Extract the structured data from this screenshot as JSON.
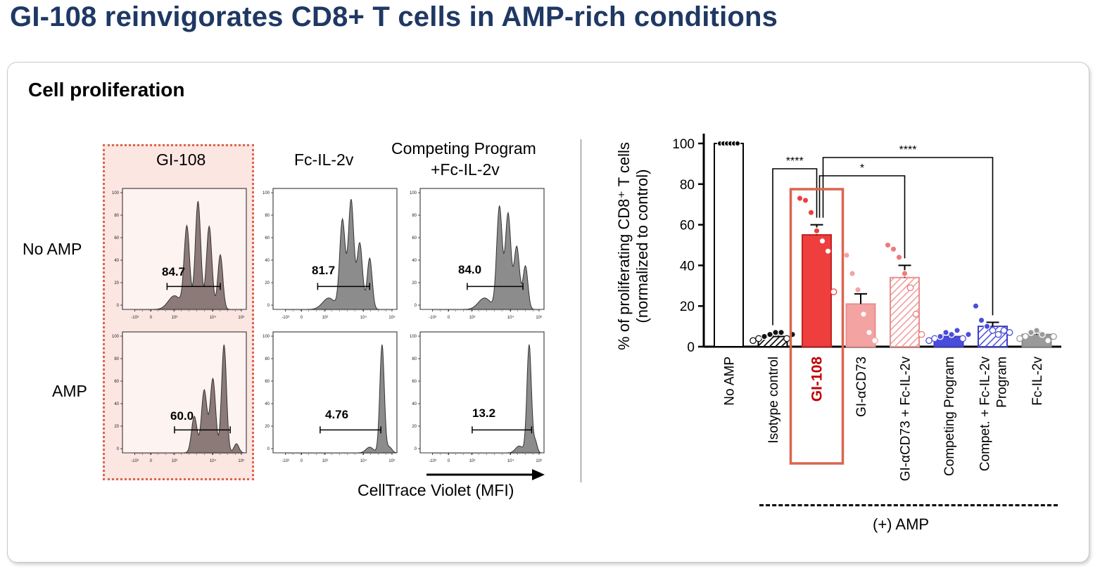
{
  "title": "GI-108 reinvigorates CD8+ T cells in AMP-rich conditions",
  "panel_title": "Cell proliferation",
  "flow": {
    "columns": [
      "GI-108",
      "Fc-IL-2v",
      "Competing Program",
      "+Fc-IL-2v"
    ],
    "rows": [
      "No AMP",
      "AMP"
    ],
    "percentages": [
      [
        "84.7",
        "81.7",
        "84.0"
      ],
      [
        "60.0",
        "4.76",
        "13.2"
      ]
    ],
    "x_axis_label": "CellTrace Violet (MFI)",
    "y_ticks": [
      "100",
      "80",
      "60",
      "40",
      "20",
      "0"
    ],
    "x_ticks": [
      "-10³",
      "0",
      "10³",
      "10⁴",
      "10⁵"
    ]
  },
  "chart_data": {
    "type": "bar",
    "ylabel": "% of proliferating CD8⁺ T cells",
    "ylabel2": "(normalized to control)",
    "ylim": [
      0,
      100
    ],
    "yticks": [
      0,
      20,
      40,
      60,
      80,
      100
    ],
    "categories": [
      "No AMP",
      "Isotype control",
      "GI-108",
      "GI-αCD73",
      "GI-αCD73 + Fc-IL-2v",
      "Competing Program",
      "Compet. + Fc-IL-2v Program",
      "Fc-IL-2v"
    ],
    "category_lines": [
      [
        "No AMP"
      ],
      [
        "Isotype control"
      ],
      [
        "GI-108"
      ],
      [
        "GI-αCD73"
      ],
      [
        "GI-αCD73 + Fc-IL-2v"
      ],
      [
        "Competing Program"
      ],
      [
        "Compet.  + Fc-IL-2v",
        "Program"
      ],
      [
        "Fc-IL-2v"
      ]
    ],
    "values": [
      100,
      5,
      55,
      21,
      34,
      5,
      10,
      6
    ],
    "sem": [
      0,
      1,
      5,
      5,
      6,
      1,
      2,
      1
    ],
    "points": [
      [
        100,
        100,
        100,
        100,
        100,
        100
      ],
      [
        3,
        4,
        5,
        6,
        7,
        7,
        4,
        6
      ],
      [
        73,
        72,
        66,
        57,
        52,
        47,
        27
      ],
      [
        45,
        36,
        28,
        16,
        7,
        3
      ],
      [
        50,
        48,
        44,
        36,
        29,
        16,
        6
      ],
      [
        3,
        4,
        5,
        7,
        6,
        8,
        4,
        6
      ],
      [
        20,
        13,
        10,
        8,
        6,
        8,
        7
      ],
      [
        4,
        5,
        7,
        8,
        6,
        3,
        5
      ]
    ],
    "colors": [
      "#ffffff",
      "#111111",
      "#ee3e3e",
      "#f4a3a3",
      "#f5b3b3",
      "#4a4ddb",
      "#4a4ddb",
      "#9a9a9a"
    ],
    "fills": [
      "plain",
      "hatch-dark",
      "solid",
      "solid",
      "hatch-pink",
      "solid",
      "hatch-blue",
      "solid"
    ],
    "highlight_category": "GI-108",
    "significance": [
      {
        "from": "Isotype control",
        "to": "GI-108",
        "label": "****"
      },
      {
        "from": "GI-108",
        "to": "GI-αCD73 + Fc-IL-2v",
        "label": "*"
      },
      {
        "from": "GI-108",
        "to": "Compet. + Fc-IL-2v Program",
        "label": "****"
      }
    ],
    "group_label": "(+) AMP"
  }
}
